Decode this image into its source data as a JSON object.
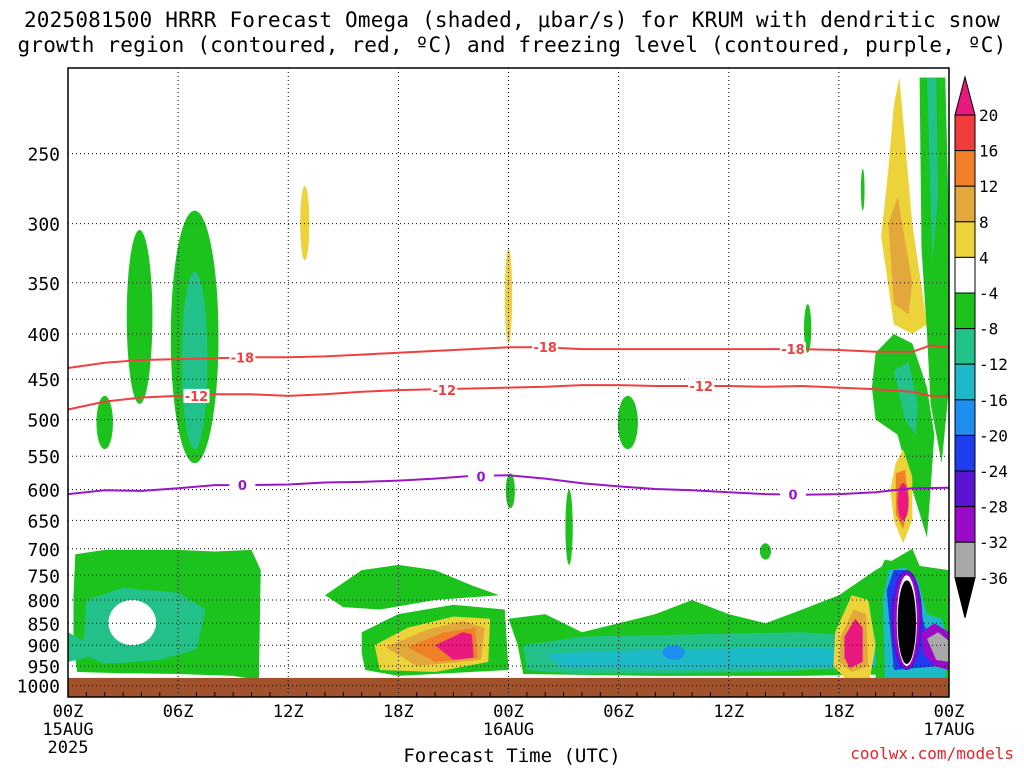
{
  "title": {
    "line1": "2025081500 HRRR Forecast Omega (shaded, μbar/s) for KRUM with dendritic snow",
    "line2": "growth region (contoured, red, ºC) and freezing level (contoured, purple, ºC)"
  },
  "credit": "coolwx.com/models",
  "chart_data": {
    "type": "contour",
    "title": "2025081500 HRRR Forecast Omega (shaded, μbar/s) for KRUM with dendritic snow growth region (contoured, red, ºC) and freezing level (contoured, purple, ºC)",
    "xlabel": "Forecast Time (UTC)",
    "ylabel": "",
    "x_range_hours": [
      0,
      48
    ],
    "x_ticks": [
      {
        "hour": 0,
        "label": "00Z",
        "sub": [
          "15AUG",
          "2025"
        ]
      },
      {
        "hour": 6,
        "label": "06Z",
        "sub": []
      },
      {
        "hour": 12,
        "label": "12Z",
        "sub": []
      },
      {
        "hour": 18,
        "label": "18Z",
        "sub": []
      },
      {
        "hour": 24,
        "label": "00Z",
        "sub": [
          "16AUG"
        ]
      },
      {
        "hour": 30,
        "label": "06Z",
        "sub": []
      },
      {
        "hour": 36,
        "label": "12Z",
        "sub": []
      },
      {
        "hour": 42,
        "label": "18Z",
        "sub": []
      },
      {
        "hour": 48,
        "label": "00Z",
        "sub": [
          "17AUG"
        ]
      }
    ],
    "y_scale": "log",
    "y_range_hpa": [
      1030,
      200
    ],
    "y_ticks": [
      250,
      300,
      350,
      400,
      450,
      500,
      550,
      600,
      650,
      700,
      750,
      800,
      850,
      900,
      950,
      1000
    ],
    "grid": true,
    "colorbar": {
      "labels": [
        "20",
        "16",
        "12",
        "8",
        "4",
        "-4",
        "-8",
        "-12",
        "-16",
        "-20",
        "-24",
        "-28",
        "-32",
        "-36"
      ],
      "colors": [
        "#e8197f",
        "#f03c3c",
        "#f07f28",
        "#e3a83c",
        "#ecd339",
        "#ffffff",
        "#1dc31d",
        "#22c18a",
        "#1cb9c7",
        "#1e8ff0",
        "#1e3cf0",
        "#5a14d2",
        "#9a0ac9",
        "#a8a8a8",
        "#000000"
      ]
    },
    "contours": [
      {
        "name": "-18",
        "color": "#f04040",
        "points": [
          [
            0,
            437
          ],
          [
            2,
            431
          ],
          [
            4,
            428
          ],
          [
            6,
            427
          ],
          [
            8,
            426
          ],
          [
            10,
            425
          ],
          [
            12,
            425
          ],
          [
            14,
            424
          ],
          [
            16,
            422
          ],
          [
            18,
            420
          ],
          [
            20,
            418
          ],
          [
            22,
            416
          ],
          [
            24,
            414
          ],
          [
            26,
            414
          ],
          [
            28,
            416
          ],
          [
            30,
            416
          ],
          [
            32,
            416
          ],
          [
            34,
            416
          ],
          [
            36,
            416
          ],
          [
            38,
            416
          ],
          [
            40,
            416
          ],
          [
            42,
            417
          ],
          [
            44,
            419
          ],
          [
            46,
            419
          ],
          [
            47,
            412
          ],
          [
            48,
            414
          ]
        ],
        "labels": [
          [
            9.5,
            425
          ],
          [
            26,
            414
          ],
          [
            39.5,
            416
          ]
        ]
      },
      {
        "name": "-12",
        "color": "#f04040",
        "points": [
          [
            0,
            487
          ],
          [
            2,
            477
          ],
          [
            4,
            472
          ],
          [
            6,
            470
          ],
          [
            8,
            468
          ],
          [
            10,
            468
          ],
          [
            12,
            470
          ],
          [
            14,
            468
          ],
          [
            16,
            465
          ],
          [
            18,
            463
          ],
          [
            20,
            462
          ],
          [
            22,
            461
          ],
          [
            24,
            460
          ],
          [
            26,
            459
          ],
          [
            28,
            457
          ],
          [
            30,
            457
          ],
          [
            32,
            458
          ],
          [
            34,
            458
          ],
          [
            36,
            458
          ],
          [
            38,
            459
          ],
          [
            40,
            458
          ],
          [
            42,
            460
          ],
          [
            44,
            462
          ],
          [
            46,
            465
          ],
          [
            47,
            470
          ],
          [
            48,
            470
          ]
        ],
        "labels": [
          [
            7,
            470
          ],
          [
            20.5,
            463
          ],
          [
            34.5,
            458
          ]
        ]
      },
      {
        "name": "0",
        "color": "#9b16c8",
        "points": [
          [
            0,
            607
          ],
          [
            2,
            601
          ],
          [
            4,
            602
          ],
          [
            6,
            598
          ],
          [
            8,
            593
          ],
          [
            10,
            593
          ],
          [
            12,
            592
          ],
          [
            14,
            589
          ],
          [
            16,
            588
          ],
          [
            18,
            586
          ],
          [
            20,
            583
          ],
          [
            22,
            579
          ],
          [
            24,
            578
          ],
          [
            26,
            583
          ],
          [
            28,
            590
          ],
          [
            30,
            595
          ],
          [
            32,
            599
          ],
          [
            34,
            601
          ],
          [
            36,
            604
          ],
          [
            38,
            607
          ],
          [
            40,
            608
          ],
          [
            42,
            607
          ],
          [
            44,
            604
          ],
          [
            46,
            598
          ],
          [
            48,
            597
          ]
        ],
        "labels": [
          [
            9.5,
            593
          ],
          [
            22.5,
            580
          ],
          [
            39.5,
            608
          ]
        ]
      }
    ]
  }
}
